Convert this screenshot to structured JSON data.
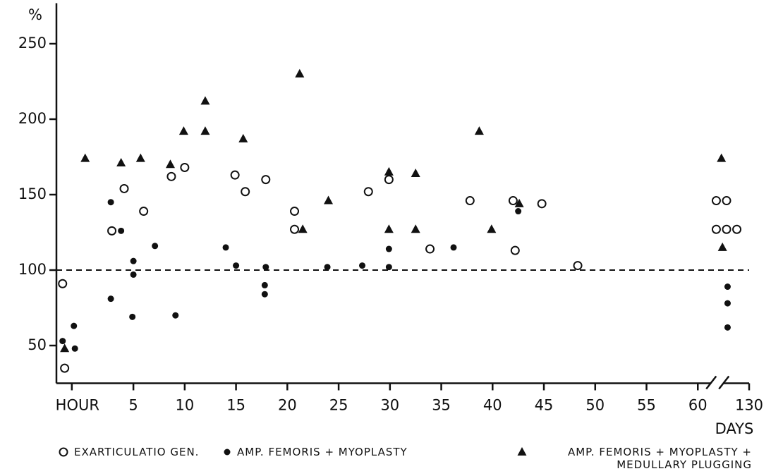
{
  "chart_data": {
    "type": "scatter",
    "y_label": "%",
    "x_label": "DAYS",
    "xlim": [
      -2.5,
      65
    ],
    "ylim": [
      25,
      275
    ],
    "x_break": [
      60,
      125
    ],
    "xticks": [
      {
        "value": -1,
        "label": "HOUR"
      },
      5,
      10,
      15,
      20,
      25,
      30,
      35,
      40,
      45,
      50,
      55,
      60,
      130
    ],
    "yticks": [
      50,
      100,
      150,
      200,
      250
    ],
    "reference_line": 100,
    "series": [
      {
        "name": "EXARTICULATIO  GEN.",
        "marker": "open-circle",
        "color": "#111111",
        "x": [
          -1.9,
          -1.7,
          2.9,
          4.1,
          6.0,
          8.7,
          10.0,
          14.9,
          15.9,
          17.9,
          20.7,
          20.7,
          27.9,
          29.9,
          33.9,
          37.8,
          42.0,
          42.2,
          44.8,
          48.3,
          126.8,
          127.8,
          128.8,
          126.8,
          127.8
        ],
        "values": [
          91,
          35,
          126,
          154,
          139,
          162,
          168,
          163,
          152,
          160,
          139,
          127,
          152,
          160,
          114,
          146,
          146,
          113,
          144,
          103,
          127,
          127,
          127,
          146,
          146
        ]
      },
      {
        "name": "AMP. FEMORIS + MYOPLASTY",
        "marker": "filled-circle",
        "color": "#111111",
        "x": [
          -1.9,
          -0.8,
          -0.7,
          2.8,
          2.8,
          3.8,
          5.0,
          5.0,
          4.9,
          7.1,
          9.1,
          14.0,
          15.0,
          17.9,
          17.8,
          17.8,
          23.9,
          27.3,
          29.9,
          29.9,
          36.2,
          42.5,
          127.9,
          127.9,
          127.9
        ],
        "values": [
          53,
          63,
          48,
          145,
          81,
          126,
          106,
          97,
          69,
          116,
          70,
          115,
          103,
          102,
          90,
          84,
          102,
          103,
          114,
          102,
          115,
          139,
          89,
          78,
          62
        ]
      },
      {
        "name": "AMP. FEMORIS + MYOPLASTY + MEDULLARY PLUGGING",
        "marker": "triangle",
        "color": "#111111",
        "x": [
          -1.7,
          0.3,
          3.8,
          5.7,
          8.6,
          9.9,
          12.0,
          12.0,
          15.7,
          21.2,
          21.5,
          24.0,
          29.9,
          29.9,
          32.5,
          32.5,
          38.7,
          39.9,
          42.6,
          127.3,
          127.4
        ],
        "values": [
          48,
          174,
          171,
          174,
          170,
          192,
          192,
          212,
          187,
          230,
          127,
          146,
          165,
          127,
          164,
          127,
          192,
          127,
          144,
          174,
          115
        ]
      }
    ]
  }
}
